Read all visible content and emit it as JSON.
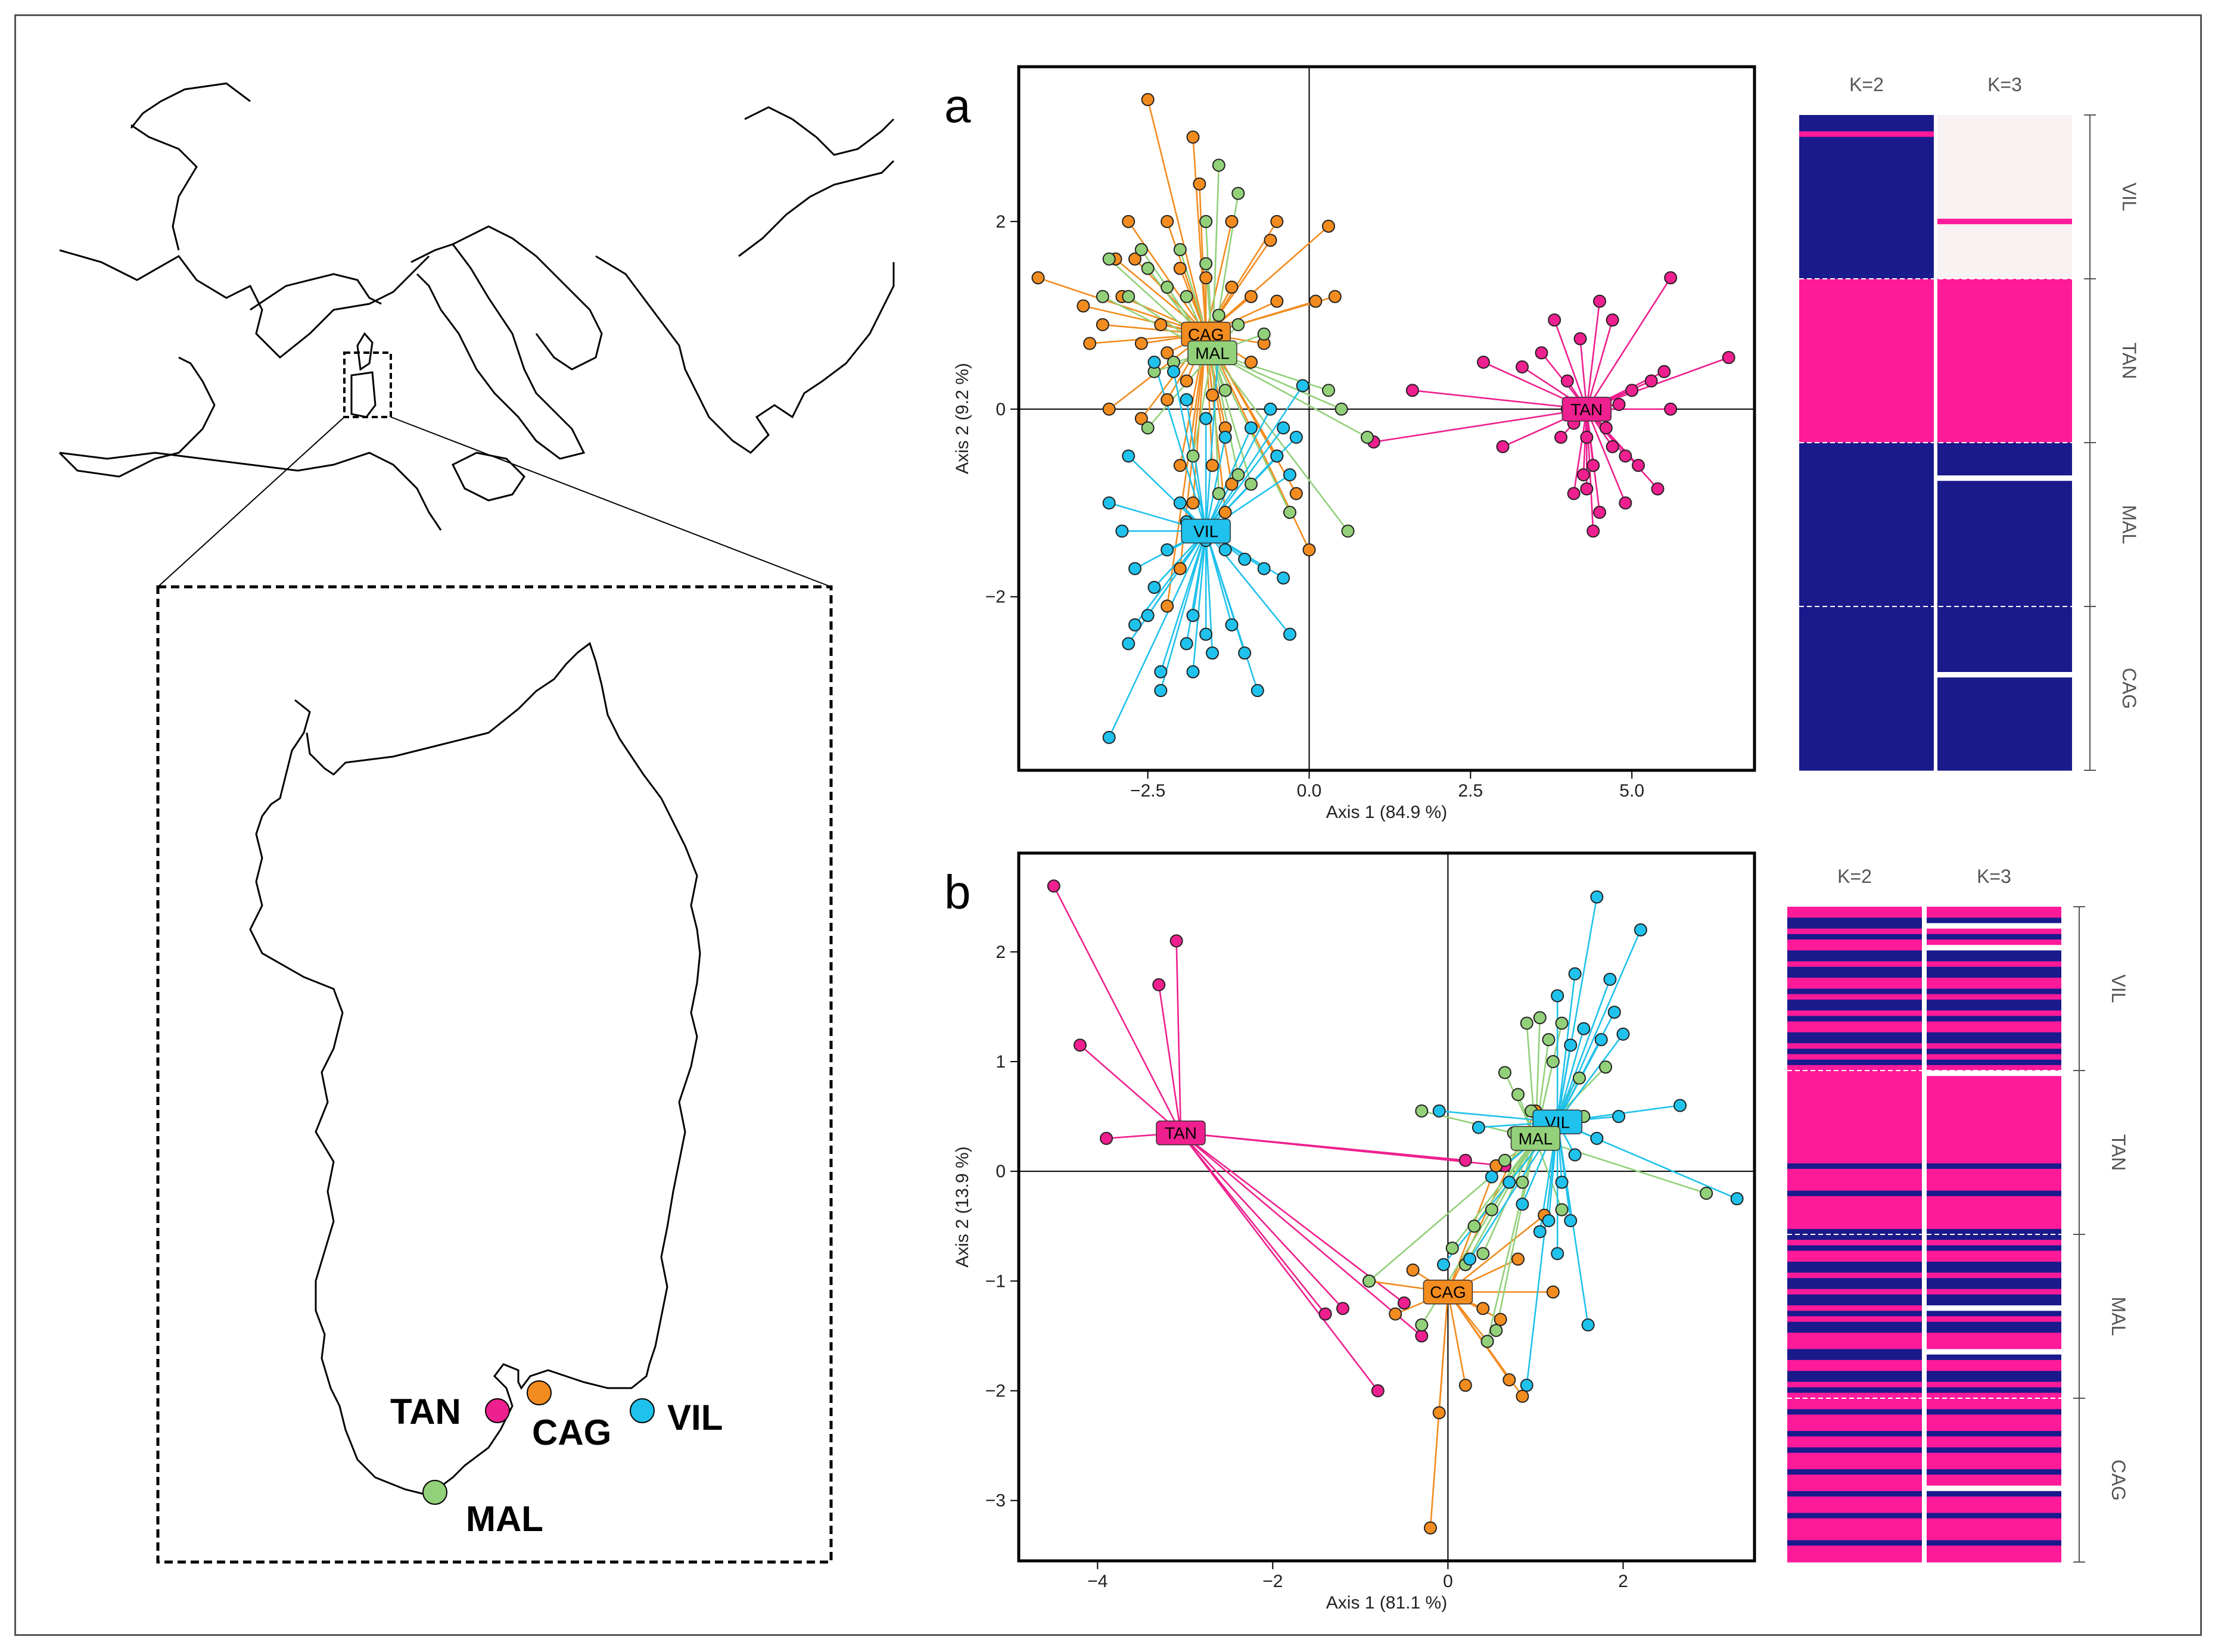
{
  "colors": {
    "TAN": "#ee1f8e",
    "CAG": "#f28c1f",
    "VIL": "#1fc2ec",
    "MAL": "#93d07a",
    "cluster_blue": "#1a1a8c",
    "cluster_pink": "#ff1a9a",
    "cluster_white": "#f9f2f2"
  },
  "map": {
    "sites": [
      {
        "code": "TAN",
        "name": "TAN"
      },
      {
        "code": "CAG",
        "name": "CAG"
      },
      {
        "code": "VIL",
        "name": "VIL"
      },
      {
        "code": "MAL",
        "name": "MAL"
      }
    ]
  },
  "chart_data": [
    {
      "panel": "a",
      "type": "scatter",
      "title": "",
      "xlabel": "Axis 1 (84.9 %)",
      "ylabel": "Axis 2 (9.2 %)",
      "xlim": [
        -4.5,
        6.9
      ],
      "ylim": [
        -3.85,
        3.65
      ],
      "xticks": [
        -2.5,
        0,
        2.5,
        5
      ],
      "xtick_labels": [
        "−2.5",
        "0.0",
        "2.5",
        "5.0"
      ],
      "yticks": [
        -2,
        0,
        2
      ],
      "ytick_labels": [
        "−2",
        "0",
        "2"
      ],
      "centroids": [
        {
          "pop": "CAG",
          "x": -1.6,
          "y": 0.8
        },
        {
          "pop": "MAL",
          "x": -1.5,
          "y": 0.6
        },
        {
          "pop": "VIL",
          "x": -1.6,
          "y": -1.3
        },
        {
          "pop": "TAN",
          "x": 4.3,
          "y": 0.0
        }
      ],
      "points": {
        "TAN": [
          [
            5.6,
            1.4
          ],
          [
            6.5,
            0.55
          ],
          [
            4.5,
            1.15
          ],
          [
            4.7,
            0.95
          ],
          [
            3.8,
            0.95
          ],
          [
            3.6,
            0.6
          ],
          [
            4.2,
            0.75
          ],
          [
            5.0,
            0.2
          ],
          [
            5.3,
            0.3
          ],
          [
            5.5,
            0.4
          ],
          [
            4.0,
            0.3
          ],
          [
            3.3,
            0.45
          ],
          [
            2.7,
            0.5
          ],
          [
            1.6,
            0.2
          ],
          [
            3.0,
            -0.4
          ],
          [
            1.0,
            -0.35
          ],
          [
            5.6,
            0.0
          ],
          [
            4.6,
            -0.2
          ],
          [
            4.3,
            -0.3
          ],
          [
            4.7,
            -0.4
          ],
          [
            4.4,
            -0.6
          ],
          [
            4.9,
            -0.5
          ],
          [
            5.1,
            -0.6
          ],
          [
            5.4,
            -0.85
          ],
          [
            4.3,
            -0.85
          ],
          [
            4.5,
            -1.1
          ],
          [
            4.9,
            -1.0
          ],
          [
            4.4,
            -1.3
          ],
          [
            3.9,
            -0.3
          ],
          [
            4.1,
            -0.9
          ],
          [
            4.0,
            0.0
          ],
          [
            4.8,
            0.05
          ],
          [
            4.1,
            -0.15
          ],
          [
            4.25,
            -0.7
          ]
        ],
        "CAG": [
          [
            -2.5,
            3.3
          ],
          [
            -1.8,
            2.9
          ],
          [
            -1.7,
            2.4
          ],
          [
            -2.2,
            2.0
          ],
          [
            -2.8,
            2.0
          ],
          [
            -1.2,
            2.0
          ],
          [
            -0.6,
            1.8
          ],
          [
            -0.5,
            2.0
          ],
          [
            0.3,
            1.95
          ],
          [
            -3.0,
            1.6
          ],
          [
            -2.7,
            1.6
          ],
          [
            -2.0,
            1.5
          ],
          [
            -1.6,
            1.4
          ],
          [
            -1.2,
            1.3
          ],
          [
            -0.9,
            1.2
          ],
          [
            -0.5,
            1.15
          ],
          [
            0.1,
            1.15
          ],
          [
            0.4,
            1.2
          ],
          [
            -4.2,
            1.4
          ],
          [
            -3.5,
            1.1
          ],
          [
            -3.2,
            0.9
          ],
          [
            -2.9,
            1.2
          ],
          [
            -2.6,
            0.7
          ],
          [
            -2.3,
            0.9
          ],
          [
            -2.2,
            0.6
          ],
          [
            -1.9,
            0.3
          ],
          [
            -1.5,
            0.15
          ],
          [
            -1.3,
            -0.2
          ],
          [
            -3.4,
            0.7
          ],
          [
            -3.1,
            0.0
          ],
          [
            -2.6,
            -0.1
          ],
          [
            -2.2,
            0.1
          ],
          [
            -2.0,
            -0.6
          ],
          [
            -1.5,
            -0.6
          ],
          [
            -1.2,
            -0.8
          ],
          [
            -0.5,
            -0.5
          ],
          [
            -0.2,
            -0.9
          ],
          [
            0.0,
            -1.5
          ],
          [
            -1.3,
            -1.1
          ],
          [
            -1.8,
            -1.0
          ],
          [
            -2.0,
            -1.7
          ],
          [
            -2.2,
            -2.1
          ],
          [
            -0.7,
            0.7
          ],
          [
            -0.9,
            0.5
          ]
        ],
        "MAL": [
          [
            -1.4,
            2.6
          ],
          [
            -1.1,
            2.3
          ],
          [
            -1.6,
            2.0
          ],
          [
            -2.0,
            1.7
          ],
          [
            -2.6,
            1.7
          ],
          [
            -3.1,
            1.6
          ],
          [
            -3.2,
            1.2
          ],
          [
            -2.5,
            1.5
          ],
          [
            -2.2,
            1.3
          ],
          [
            -1.9,
            1.2
          ],
          [
            -1.4,
            1.0
          ],
          [
            -1.1,
            0.9
          ],
          [
            -0.7,
            0.8
          ],
          [
            -2.8,
            1.2
          ],
          [
            -2.4,
            0.4
          ],
          [
            -2.1,
            0.5
          ],
          [
            -1.3,
            0.2
          ],
          [
            0.3,
            0.2
          ],
          [
            0.5,
            0.0
          ],
          [
            0.9,
            -0.3
          ],
          [
            0.6,
            -1.3
          ],
          [
            -0.3,
            -1.1
          ],
          [
            -1.1,
            -0.7
          ],
          [
            -0.9,
            -0.8
          ],
          [
            -1.4,
            -0.9
          ],
          [
            -1.8,
            -0.5
          ],
          [
            -2.5,
            -0.2
          ],
          [
            -1.6,
            1.55
          ]
        ],
        "VIL": [
          [
            -2.4,
            0.5
          ],
          [
            -2.1,
            0.4
          ],
          [
            -1.9,
            0.1
          ],
          [
            -1.6,
            -0.1
          ],
          [
            -1.3,
            -0.3
          ],
          [
            -0.9,
            -0.2
          ],
          [
            -0.6,
            0.0
          ],
          [
            -0.4,
            -0.2
          ],
          [
            -0.2,
            -0.3
          ],
          [
            -0.3,
            -0.7
          ],
          [
            -0.5,
            -0.5
          ],
          [
            -2.8,
            -0.5
          ],
          [
            -3.1,
            -1.0
          ],
          [
            -2.9,
            -1.3
          ],
          [
            -2.7,
            -1.7
          ],
          [
            -2.4,
            -1.9
          ],
          [
            -2.2,
            -1.5
          ],
          [
            -1.9,
            -1.2
          ],
          [
            -1.6,
            -1.4
          ],
          [
            -1.3,
            -1.5
          ],
          [
            -1.0,
            -1.6
          ],
          [
            -0.7,
            -1.7
          ],
          [
            -0.4,
            -1.8
          ],
          [
            -2.5,
            -2.2
          ],
          [
            -2.7,
            -2.3
          ],
          [
            -2.8,
            -2.5
          ],
          [
            -1.8,
            -2.2
          ],
          [
            -1.6,
            -2.4
          ],
          [
            -1.9,
            -2.5
          ],
          [
            -1.2,
            -2.3
          ],
          [
            -1.0,
            -2.6
          ],
          [
            -1.5,
            -2.6
          ],
          [
            -2.3,
            -2.8
          ],
          [
            -1.8,
            -2.8
          ],
          [
            -2.3,
            -3.0
          ],
          [
            -0.8,
            -3.0
          ],
          [
            -0.3,
            -2.4
          ],
          [
            -3.1,
            -3.5
          ],
          [
            -0.1,
            0.25
          ],
          [
            -1.4,
            0.7
          ],
          [
            -2.0,
            -1.0
          ]
        ]
      },
      "structure": {
        "k_labels": [
          "K=2",
          "K=3"
        ],
        "populations": [
          "VIL",
          "TAN",
          "MAL",
          "CAG"
        ]
      }
    },
    {
      "panel": "b",
      "type": "scatter",
      "title": "",
      "xlabel": "Axis 1 (81.1 %)",
      "ylabel": "Axis 2 (13.9 %)",
      "xlim": [
        -4.9,
        3.5
      ],
      "ylim": [
        -3.55,
        2.9
      ],
      "xticks": [
        -4,
        -2,
        0,
        2
      ],
      "xtick_labels": [
        "−4",
        "−2",
        "0",
        "2"
      ],
      "yticks": [
        -3,
        -2,
        -1,
        0,
        1,
        2
      ],
      "ytick_labels": [
        "−3",
        "−2",
        "−1",
        "0",
        "1",
        "2"
      ],
      "centroids": [
        {
          "pop": "TAN",
          "x": -3.05,
          "y": 0.35
        },
        {
          "pop": "VIL",
          "x": 1.25,
          "y": 0.45
        },
        {
          "pop": "MAL",
          "x": 1.0,
          "y": 0.3
        },
        {
          "pop": "CAG",
          "x": 0.0,
          "y": -1.1
        }
      ],
      "points": {
        "TAN": [
          [
            -4.5,
            2.6
          ],
          [
            -3.1,
            2.1
          ],
          [
            -3.3,
            1.7
          ],
          [
            -4.2,
            1.15
          ],
          [
            -3.9,
            0.3
          ],
          [
            0.2,
            0.1
          ],
          [
            0.65,
            0.05
          ],
          [
            -1.2,
            -1.25
          ],
          [
            -0.5,
            -1.2
          ],
          [
            -1.4,
            -1.3
          ],
          [
            -0.3,
            -1.5
          ],
          [
            -0.8,
            -2.0
          ]
        ],
        "CAG": [
          [
            -0.2,
            -3.25
          ],
          [
            -0.1,
            -2.2
          ],
          [
            0.2,
            -1.95
          ],
          [
            0.45,
            -1.55
          ],
          [
            0.7,
            -1.9
          ],
          [
            0.85,
            -2.05
          ],
          [
            0.4,
            -1.25
          ],
          [
            0.6,
            -1.35
          ],
          [
            1.2,
            -1.1
          ],
          [
            -0.6,
            -1.3
          ],
          [
            -0.9,
            -1.0
          ],
          [
            -0.4,
            -0.9
          ],
          [
            0.55,
            0.05
          ],
          [
            1.0,
            0.55
          ],
          [
            0.8,
            -0.8
          ],
          [
            -0.2,
            -1.05
          ],
          [
            1.1,
            -0.4
          ]
        ],
        "MAL": [
          [
            -0.3,
            0.55
          ],
          [
            0.9,
            1.35
          ],
          [
            1.05,
            1.4
          ],
          [
            1.15,
            1.2
          ],
          [
            0.65,
            0.9
          ],
          [
            0.8,
            0.7
          ],
          [
            0.95,
            0.55
          ],
          [
            0.75,
            0.35
          ],
          [
            0.65,
            0.1
          ],
          [
            0.5,
            -0.35
          ],
          [
            0.4,
            -0.75
          ],
          [
            1.2,
            1.0
          ],
          [
            1.5,
            0.85
          ],
          [
            1.55,
            0.5
          ],
          [
            2.95,
            -0.2
          ],
          [
            1.3,
            -0.35
          ],
          [
            0.3,
            -0.5
          ],
          [
            0.2,
            -0.85
          ],
          [
            -0.9,
            -1.0
          ],
          [
            0.05,
            -0.7
          ],
          [
            0.55,
            -1.45
          ],
          [
            0.45,
            -1.55
          ],
          [
            -0.3,
            -1.4
          ],
          [
            0.85,
            -0.1
          ],
          [
            1.3,
            1.35
          ],
          [
            1.8,
            0.95
          ]
        ],
        "VIL": [
          [
            1.7,
            2.5
          ],
          [
            2.2,
            2.2
          ],
          [
            1.45,
            1.8
          ],
          [
            1.85,
            1.75
          ],
          [
            1.9,
            1.45
          ],
          [
            2.0,
            1.25
          ],
          [
            1.75,
            1.2
          ],
          [
            1.55,
            1.3
          ],
          [
            1.25,
            1.6
          ],
          [
            1.4,
            1.15
          ],
          [
            2.65,
            0.6
          ],
          [
            3.3,
            -0.25
          ],
          [
            1.95,
            0.5
          ],
          [
            1.7,
            0.3
          ],
          [
            1.45,
            0.15
          ],
          [
            1.3,
            -0.1
          ],
          [
            1.15,
            -0.45
          ],
          [
            1.05,
            -0.55
          ],
          [
            0.85,
            -0.3
          ],
          [
            0.7,
            -0.1
          ],
          [
            0.5,
            -0.05
          ],
          [
            0.35,
            0.4
          ],
          [
            -0.1,
            0.55
          ],
          [
            1.25,
            -0.75
          ],
          [
            1.6,
            -1.4
          ],
          [
            0.9,
            -1.95
          ],
          [
            0.25,
            -0.8
          ],
          [
            -0.05,
            -0.85
          ],
          [
            1.4,
            -0.45
          ]
        ]
      },
      "structure": {
        "k_labels": [
          "K=2",
          "K=3"
        ],
        "populations": [
          "VIL",
          "TAN",
          "MAL",
          "CAG"
        ]
      }
    }
  ]
}
